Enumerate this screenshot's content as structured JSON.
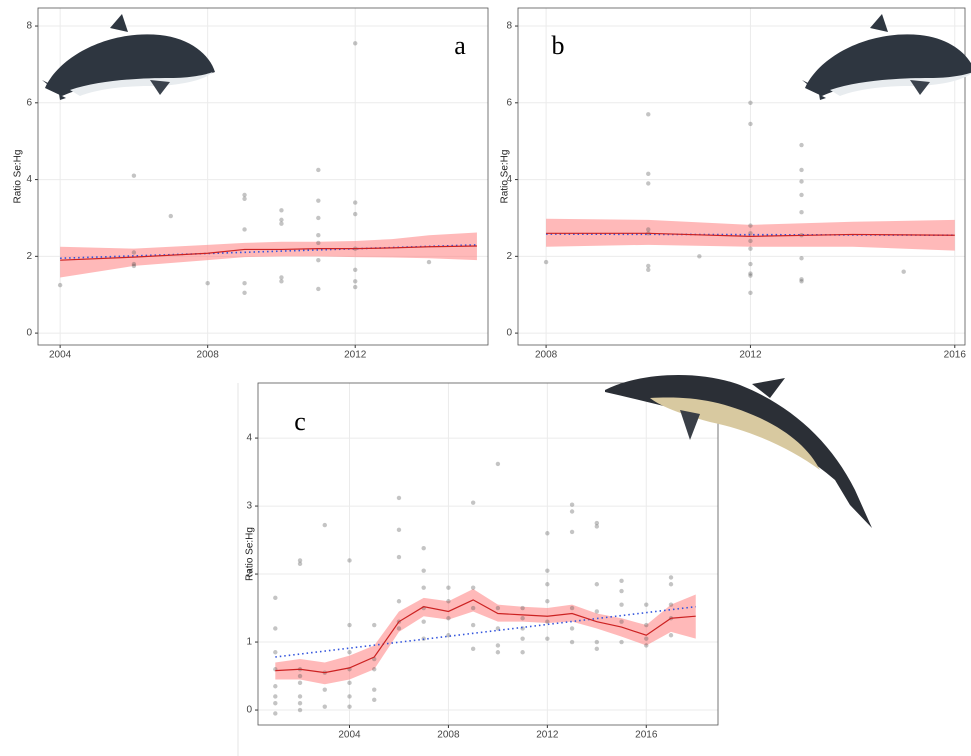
{
  "chart_data": [
    {
      "type": "scatter",
      "annotation": "a",
      "ylabel": "Ratio Se:Hg",
      "xlim": [
        2003.4,
        2015.6
      ],
      "ylim": [
        -0.31,
        8.47
      ],
      "xticks": [
        2004,
        2008,
        2012
      ],
      "yticks": [
        0,
        2,
        4,
        6,
        8
      ],
      "grid": true,
      "color": "#555555",
      "x": [
        2004,
        2006,
        2006,
        2006,
        2006,
        2007,
        2008,
        2009,
        2009,
        2009,
        2009,
        2009,
        2010,
        2010,
        2010,
        2010,
        2010,
        2011,
        2011,
        2011,
        2011,
        2011,
        2011,
        2011,
        2012,
        2012,
        2012,
        2012,
        2012,
        2012,
        2012,
        2014
      ],
      "values": [
        1.25,
        4.1,
        2.1,
        1.8,
        1.75,
        3.05,
        1.3,
        3.6,
        3.5,
        2.7,
        1.3,
        1.05,
        3.2,
        2.95,
        2.85,
        1.45,
        1.35,
        4.25,
        3.45,
        3.0,
        2.55,
        2.35,
        1.9,
        1.15,
        7.55,
        3.4,
        3.1,
        2.2,
        1.65,
        1.35,
        1.2,
        1.85
      ],
      "fit": {
        "color": "#cc2222",
        "band_color": "#ff8080",
        "x": [
          2004,
          2006,
          2008,
          2009,
          2010,
          2011,
          2012,
          2013,
          2014,
          2015.3
        ],
        "values": [
          1.9,
          1.98,
          2.08,
          2.18,
          2.18,
          2.2,
          2.2,
          2.22,
          2.25,
          2.27
        ],
        "lower": [
          1.45,
          1.75,
          1.9,
          1.98,
          2.0,
          2.0,
          1.98,
          1.97,
          1.95,
          1.9
        ],
        "upper": [
          2.25,
          2.2,
          2.3,
          2.35,
          2.38,
          2.38,
          2.4,
          2.45,
          2.55,
          2.62
        ]
      },
      "trend": {
        "color": "#3355dd",
        "x": [
          2004,
          2015.3
        ],
        "values": [
          1.95,
          2.3
        ]
      }
    },
    {
      "type": "scatter",
      "annotation": "b",
      "ylabel": "Ratio Se:Hg",
      "xlim": [
        2007.45,
        2016.2
      ],
      "ylim": [
        -0.31,
        8.47
      ],
      "xticks": [
        2008,
        2012,
        2016
      ],
      "yticks": [
        0,
        2,
        4,
        6,
        8
      ],
      "grid": true,
      "color": "#555555",
      "x": [
        2008,
        2010,
        2010,
        2010,
        2010,
        2010,
        2010,
        2010,
        2011,
        2012,
        2012,
        2012,
        2012,
        2012,
        2012,
        2012,
        2012,
        2012,
        2012,
        2013,
        2013,
        2013,
        2013,
        2013,
        2013,
        2013,
        2013,
        2013,
        2015
      ],
      "values": [
        1.85,
        5.7,
        4.15,
        3.9,
        2.7,
        2.6,
        1.75,
        1.65,
        2.0,
        6.0,
        5.45,
        2.8,
        2.6,
        2.4,
        2.2,
        1.8,
        1.55,
        1.5,
        1.05,
        4.9,
        4.25,
        3.95,
        3.6,
        3.15,
        2.55,
        1.95,
        1.4,
        1.35,
        1.6
      ],
      "fit": {
        "color": "#cc2222",
        "band_color": "#ff8080",
        "x": [
          2008,
          2010,
          2012,
          2014,
          2016
        ],
        "values": [
          2.6,
          2.6,
          2.52,
          2.57,
          2.55
        ],
        "lower": [
          2.25,
          2.3,
          2.25,
          2.25,
          2.15
        ],
        "upper": [
          2.98,
          2.95,
          2.82,
          2.9,
          2.95
        ]
      },
      "trend": {
        "color": "#3355dd",
        "x": [
          2008,
          2016
        ],
        "values": [
          2.58,
          2.55
        ]
      }
    },
    {
      "type": "scatter",
      "annotation": "c",
      "ylabel": "Ratio Se:Hg",
      "xlim": [
        2000.3,
        2018.9
      ],
      "ylim": [
        -0.22,
        4.81
      ],
      "xticks": [
        2004,
        2008,
        2012,
        2016
      ],
      "yticks": [
        0,
        1,
        2,
        3,
        4
      ],
      "grid": true,
      "color": "#555555",
      "x": [
        2001,
        2001,
        2001,
        2001,
        2001,
        2001,
        2001,
        2001,
        2002,
        2002,
        2002,
        2002,
        2002,
        2002,
        2002,
        2002,
        2003,
        2003,
        2003,
        2003,
        2004,
        2004,
        2004,
        2004,
        2004,
        2004,
        2004,
        2005,
        2005,
        2005,
        2005,
        2005,
        2006,
        2006,
        2006,
        2006,
        2006,
        2006,
        2007,
        2007,
        2007,
        2007,
        2007,
        2007,
        2008,
        2008,
        2008,
        2008,
        2009,
        2009,
        2009,
        2009,
        2009,
        2010,
        2010,
        2010,
        2010,
        2010,
        2011,
        2011,
        2011,
        2011,
        2011,
        2012,
        2012,
        2012,
        2012,
        2012,
        2012,
        2013,
        2013,
        2013,
        2013,
        2013,
        2013,
        2014,
        2014,
        2014,
        2014,
        2014,
        2014,
        2015,
        2015,
        2015,
        2015,
        2015,
        2016,
        2016,
        2016,
        2016,
        2017,
        2017,
        2017,
        2017,
        2017
      ],
      "values": [
        1.65,
        1.2,
        0.85,
        0.6,
        0.35,
        0.2,
        0.1,
        -0.05,
        2.2,
        2.15,
        0.6,
        0.5,
        0.4,
        0.2,
        0.1,
        0,
        2.72,
        0.55,
        0.3,
        0.05,
        2.2,
        1.25,
        0.85,
        0.6,
        0.4,
        0.2,
        0.05,
        1.25,
        0.75,
        0.6,
        0.3,
        0.15,
        3.12,
        2.65,
        2.25,
        1.6,
        1.3,
        1.2,
        2.38,
        2.05,
        1.8,
        1.5,
        1.3,
        1.05,
        1.8,
        1.6,
        1.35,
        1.1,
        3.05,
        1.8,
        1.5,
        1.25,
        0.9,
        3.62,
        1.5,
        1.2,
        0.95,
        0.85,
        1.5,
        1.35,
        1.2,
        1.05,
        0.85,
        2.6,
        2.05,
        1.85,
        1.6,
        1.3,
        1.05,
        3.02,
        2.92,
        2.62,
        1.5,
        1.2,
        1.0,
        2.75,
        2.7,
        1.85,
        1.45,
        1.0,
        0.9,
        1.9,
        1.75,
        1.55,
        1.3,
        1.0,
        1.55,
        1.25,
        1.05,
        0.95,
        1.95,
        1.85,
        1.55,
        1.35,
        1.1
      ],
      "fit": {
        "color": "#cc2222",
        "band_color": "#ff8080",
        "x": [
          2001,
          2002,
          2003,
          2004,
          2005,
          2006,
          2007,
          2008,
          2009,
          2010,
          2011,
          2012,
          2013,
          2014,
          2015,
          2016,
          2017,
          2018
        ],
        "values": [
          0.58,
          0.6,
          0.55,
          0.62,
          0.78,
          1.3,
          1.52,
          1.45,
          1.62,
          1.42,
          1.4,
          1.38,
          1.42,
          1.3,
          1.22,
          1.1,
          1.35,
          1.38
        ],
        "lower": [
          0.45,
          0.45,
          0.38,
          0.45,
          0.6,
          1.15,
          1.38,
          1.33,
          1.45,
          1.3,
          1.3,
          1.28,
          1.3,
          1.2,
          1.08,
          0.95,
          1.15,
          1.05
        ],
        "upper": [
          0.7,
          0.75,
          0.7,
          0.8,
          0.95,
          1.45,
          1.65,
          1.6,
          1.78,
          1.55,
          1.52,
          1.5,
          1.55,
          1.42,
          1.35,
          1.25,
          1.55,
          1.7
        ]
      },
      "trend": {
        "color": "#3355dd",
        "x": [
          2001,
          2018
        ],
        "values": [
          0.78,
          1.52
        ]
      }
    }
  ]
}
